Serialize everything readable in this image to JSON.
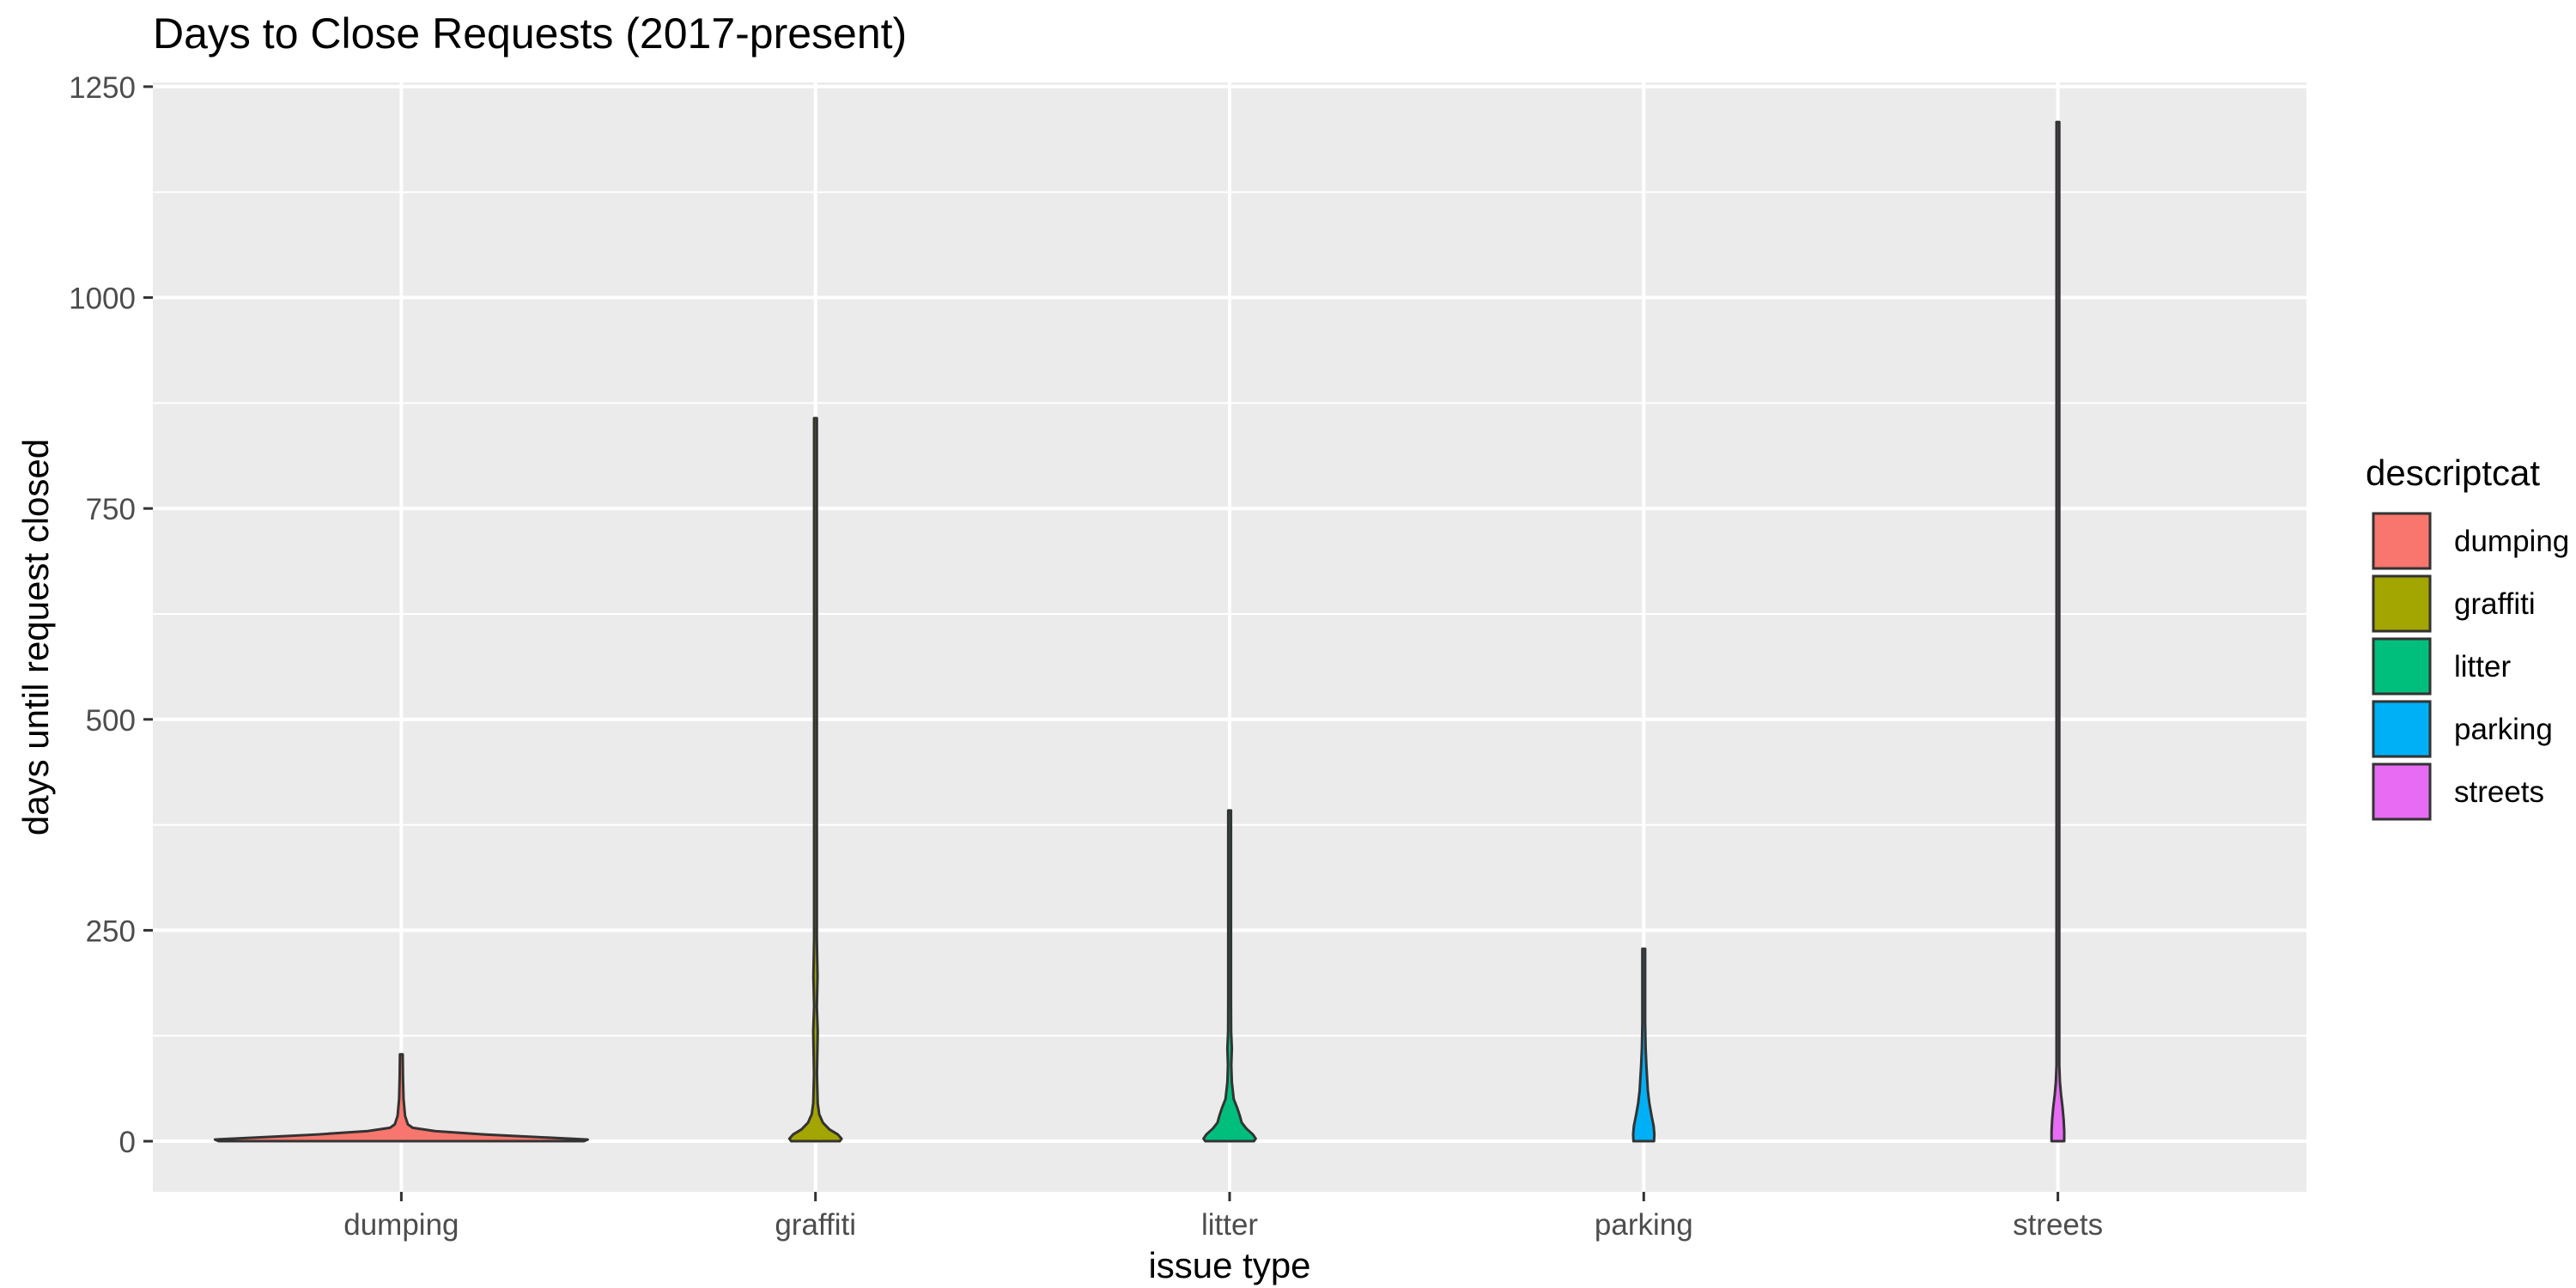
{
  "chart_data": {
    "type": "violin",
    "title": "Days to Close Requests (2017-present)",
    "xlabel": "issue type",
    "ylabel": "days until request closed",
    "categories": [
      "dumping",
      "graffiti",
      "litter",
      "parking",
      "streets"
    ],
    "ylim": [
      -60,
      1255
    ],
    "yticks": [
      0,
      250,
      500,
      750,
      1000,
      1250
    ],
    "grid": true,
    "legend": {
      "title": "descriptcat",
      "position": "right",
      "entries": [
        "dumping",
        "graffiti",
        "litter",
        "parking",
        "streets"
      ]
    },
    "colors": [
      "#F8766D",
      "#A3A500",
      "#00BF7D",
      "#00B0F6",
      "#E76BF3"
    ],
    "series": [
      {
        "name": "dumping",
        "max": 103,
        "profile": [
          [
            0,
            0.98
          ],
          [
            2,
            1.0
          ],
          [
            5,
            0.72
          ],
          [
            8,
            0.45
          ],
          [
            12,
            0.18
          ],
          [
            16,
            0.06
          ],
          [
            20,
            0.035
          ],
          [
            30,
            0.02
          ],
          [
            50,
            0.012
          ],
          [
            75,
            0.009
          ],
          [
            103,
            0.006
          ]
        ]
      },
      {
        "name": "graffiti",
        "max": 857,
        "profile": [
          [
            0,
            0.13
          ],
          [
            3,
            0.14
          ],
          [
            8,
            0.12
          ],
          [
            14,
            0.075
          ],
          [
            22,
            0.04
          ],
          [
            32,
            0.02
          ],
          [
            45,
            0.012
          ],
          [
            80,
            0.008
          ],
          [
            130,
            0.012
          ],
          [
            160,
            0.006
          ],
          [
            195,
            0.011
          ],
          [
            240,
            0.004
          ],
          [
            330,
            0.003
          ],
          [
            500,
            0.002
          ],
          [
            857,
            0.002
          ]
        ]
      },
      {
        "name": "litter",
        "max": 392,
        "profile": [
          [
            0,
            0.13
          ],
          [
            3,
            0.14
          ],
          [
            8,
            0.125
          ],
          [
            15,
            0.09
          ],
          [
            22,
            0.065
          ],
          [
            30,
            0.055
          ],
          [
            40,
            0.04
          ],
          [
            50,
            0.022
          ],
          [
            70,
            0.012
          ],
          [
            90,
            0.009
          ],
          [
            110,
            0.012
          ],
          [
            130,
            0.008
          ],
          [
            170,
            0.004
          ],
          [
            250,
            0.003
          ],
          [
            392,
            0.002
          ]
        ]
      },
      {
        "name": "parking",
        "max": 228,
        "profile": [
          [
            0,
            0.055
          ],
          [
            8,
            0.057
          ],
          [
            18,
            0.053
          ],
          [
            30,
            0.042
          ],
          [
            45,
            0.03
          ],
          [
            60,
            0.022
          ],
          [
            75,
            0.018
          ],
          [
            90,
            0.014
          ],
          [
            110,
            0.01
          ],
          [
            140,
            0.007
          ],
          [
            175,
            0.005
          ],
          [
            228,
            0.003
          ]
        ]
      },
      {
        "name": "streets",
        "max": 1208,
        "profile": [
          [
            0,
            0.034
          ],
          [
            12,
            0.034
          ],
          [
            25,
            0.031
          ],
          [
            40,
            0.025
          ],
          [
            55,
            0.017
          ],
          [
            70,
            0.011
          ],
          [
            90,
            0.007
          ],
          [
            120,
            0.005
          ],
          [
            160,
            0.004
          ],
          [
            250,
            0.003
          ],
          [
            500,
            0.002
          ],
          [
            1208,
            0.002
          ]
        ]
      }
    ]
  }
}
